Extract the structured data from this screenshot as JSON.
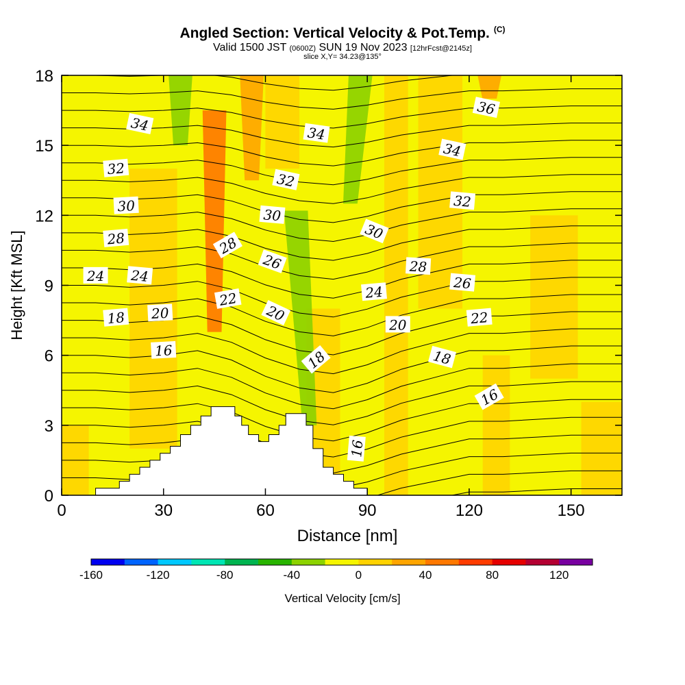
{
  "chart_data": {
    "type": "heatmap",
    "title": "Angled Section: Vertical Velocity & Pot.Temp.",
    "title_mark": "(C)",
    "subtitle": {
      "prefix": "Valid 1500 JST",
      "utc": "(0600Z)",
      "date": "SUN 19 Nov 2023",
      "fcst": "[12hrFcst@2145z]"
    },
    "slice_note": "slice X,Y= 34.23@135°",
    "xlabel": "Distance [nm]",
    "ylabel": "Height [Kft MSL]",
    "xlim": [
      0,
      165
    ],
    "ylim": [
      0,
      18
    ],
    "x_ticks": [
      0,
      30,
      60,
      90,
      120,
      150
    ],
    "y_ticks": [
      0,
      3,
      6,
      9,
      12,
      15,
      18
    ],
    "colorbar": {
      "label": "Vertical Velocity [cm/s]",
      "range": [
        -160,
        140
      ],
      "tick_labels": [
        -160,
        -120,
        -80,
        -40,
        0,
        40,
        80,
        120
      ],
      "colors": [
        "#0000f0",
        "#0064ff",
        "#00c8ff",
        "#00e6b4",
        "#00b450",
        "#28b400",
        "#8cd200",
        "#f5f500",
        "#ffd200",
        "#ffa500",
        "#ff7800",
        "#ff3c00",
        "#e60000",
        "#b40032",
        "#7800a0"
      ]
    },
    "background_value_range": [
      -10,
      30
    ],
    "velocity_features": [
      {
        "kind": "updraft",
        "x": 45,
        "ylo": 7,
        "yhi": 16.5,
        "value": 40
      },
      {
        "kind": "updraft",
        "x": 56,
        "ylo": 13.5,
        "yhi": 18,
        "value": 30
      },
      {
        "kind": "updraft",
        "x": 126,
        "ylo": 17,
        "yhi": 18,
        "value": 30
      },
      {
        "kind": "downdraft",
        "x": 35,
        "ylo": 15,
        "yhi": 18,
        "value": -40
      },
      {
        "kind": "downdraft",
        "x_top": 88,
        "x_bottom": 85,
        "ylo": 12.5,
        "yhi": 18,
        "value": -40
      },
      {
        "kind": "downdraft",
        "x_top": 69,
        "x_bottom": 73,
        "ylo": 3,
        "yhi": 12.2,
        "value": -40
      }
    ],
    "terrain": [
      [
        10,
        0.3
      ],
      [
        17,
        0.3
      ],
      [
        17,
        0.6
      ],
      [
        20,
        0.6
      ],
      [
        20,
        0.9
      ],
      [
        23,
        0.9
      ],
      [
        23,
        1.2
      ],
      [
        26,
        1.2
      ],
      [
        26,
        1.5
      ],
      [
        29,
        1.5
      ],
      [
        29,
        1.8
      ],
      [
        32,
        1.8
      ],
      [
        32,
        2.1
      ],
      [
        35,
        2.1
      ],
      [
        35,
        2.6
      ],
      [
        38,
        2.6
      ],
      [
        38,
        3.0
      ],
      [
        41,
        3.0
      ],
      [
        41,
        3.4
      ],
      [
        44,
        3.4
      ],
      [
        44,
        3.8
      ],
      [
        51,
        3.8
      ],
      [
        51,
        3.4
      ],
      [
        53,
        3.4
      ],
      [
        53,
        3.0
      ],
      [
        55,
        3.0
      ],
      [
        55,
        2.6
      ],
      [
        58,
        2.6
      ],
      [
        58,
        2.3
      ],
      [
        61,
        2.3
      ],
      [
        61,
        2.6
      ],
      [
        64,
        2.6
      ],
      [
        64,
        3.0
      ],
      [
        66,
        3.0
      ],
      [
        66,
        3.5
      ],
      [
        72,
        3.5
      ],
      [
        72,
        3.0
      ],
      [
        74,
        3.0
      ],
      [
        74,
        2.0
      ],
      [
        77,
        2.0
      ],
      [
        77,
        1.2
      ],
      [
        80,
        1.2
      ],
      [
        80,
        0.9
      ],
      [
        83,
        0.9
      ],
      [
        83,
        0.6
      ],
      [
        86,
        0.6
      ],
      [
        86,
        0.3
      ],
      [
        90,
        0.3
      ],
      [
        90,
        0
      ]
    ],
    "theta_levels": [
      14,
      15,
      16,
      17,
      18,
      19,
      20,
      21,
      22,
      23,
      24,
      25,
      26,
      27,
      28,
      29,
      30,
      31,
      32,
      33,
      34,
      35,
      36,
      37,
      38
    ],
    "theta_profiles": {
      "x": [
        0,
        10,
        20,
        30,
        40,
        50,
        60,
        70,
        80,
        90,
        100,
        110,
        120,
        130,
        140,
        150,
        165
      ],
      "offset": [
        0,
        0,
        -0.1,
        0,
        0.2,
        -0.2,
        -0.9,
        -1.4,
        -1.6,
        -1.2,
        -0.6,
        -0.2,
        0.2,
        0.2,
        0.3,
        0.4,
        0.4
      ]
    },
    "contour_labels": [
      {
        "value": "34",
        "x": 23,
        "y": 15.9,
        "angle": 12
      },
      {
        "value": "32",
        "x": 16,
        "y": 14.0,
        "angle": -5
      },
      {
        "value": "30",
        "x": 19,
        "y": 12.4,
        "angle": -3
      },
      {
        "value": "28",
        "x": 16,
        "y": 11.0,
        "angle": -5
      },
      {
        "value": "24",
        "x": 10,
        "y": 9.4,
        "angle": 0
      },
      {
        "value": "24",
        "x": 23,
        "y": 9.4,
        "angle": 5
      },
      {
        "value": "18",
        "x": 16,
        "y": 7.6,
        "angle": -5
      },
      {
        "value": "20",
        "x": 29,
        "y": 7.8,
        "angle": -3
      },
      {
        "value": "16",
        "x": 30,
        "y": 6.2,
        "angle": -3
      },
      {
        "value": "28",
        "x": 49,
        "y": 10.7,
        "angle": -30
      },
      {
        "value": "22",
        "x": 49,
        "y": 8.4,
        "angle": -10
      },
      {
        "value": "34",
        "x": 75,
        "y": 15.5,
        "angle": 8
      },
      {
        "value": "32",
        "x": 66,
        "y": 13.5,
        "angle": 12
      },
      {
        "value": "30",
        "x": 62,
        "y": 12.0,
        "angle": 5
      },
      {
        "value": "26",
        "x": 62,
        "y": 10.0,
        "angle": 20
      },
      {
        "value": "20",
        "x": 63,
        "y": 7.8,
        "angle": 25
      },
      {
        "value": "18",
        "x": 75,
        "y": 5.8,
        "angle": -40
      },
      {
        "value": "16",
        "x": 87,
        "y": 2.0,
        "angle": -85
      },
      {
        "value": "36",
        "x": 125,
        "y": 16.6,
        "angle": 12
      },
      {
        "value": "34",
        "x": 115,
        "y": 14.8,
        "angle": 12
      },
      {
        "value": "32",
        "x": 118,
        "y": 12.6,
        "angle": 5
      },
      {
        "value": "30",
        "x": 92,
        "y": 11.3,
        "angle": 22
      },
      {
        "value": "28",
        "x": 105,
        "y": 9.8,
        "angle": 3
      },
      {
        "value": "26",
        "x": 118,
        "y": 9.1,
        "angle": 5
      },
      {
        "value": "24",
        "x": 92,
        "y": 8.7,
        "angle": -5
      },
      {
        "value": "22",
        "x": 123,
        "y": 7.6,
        "angle": -5
      },
      {
        "value": "20",
        "x": 99,
        "y": 7.3,
        "angle": 0
      },
      {
        "value": "18",
        "x": 112,
        "y": 5.9,
        "angle": 15
      },
      {
        "value": "16",
        "x": 126,
        "y": 4.2,
        "angle": -30
      }
    ],
    "grid": false
  }
}
